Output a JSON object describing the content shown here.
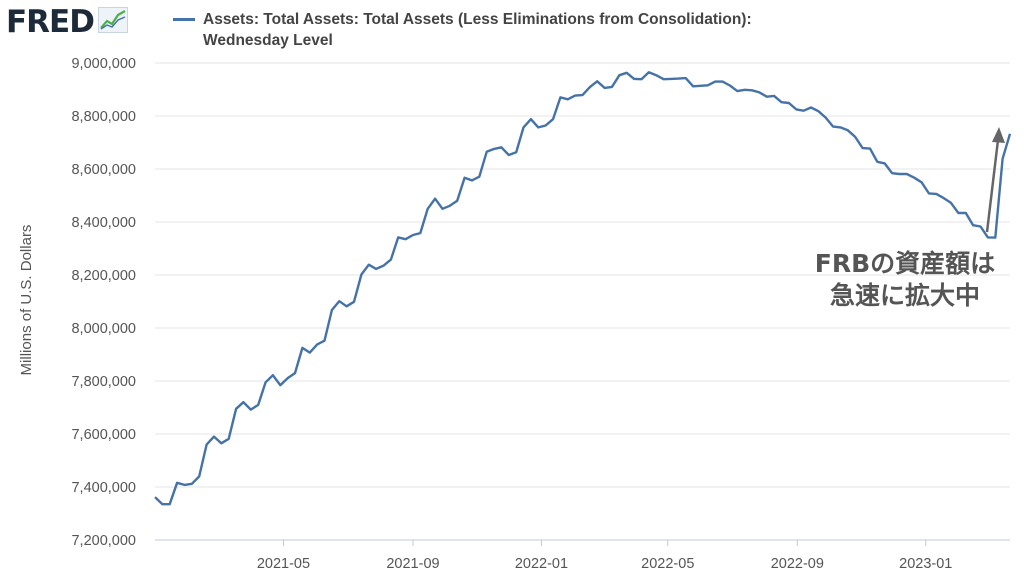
{
  "logo": {
    "text": "FRED",
    "mark": "®",
    "icon": "fred-mini-chart-icon"
  },
  "legend": {
    "line1": "Assets: Total Assets: Total Assets (Less Eliminations from Consolidation):",
    "line2": "Wednesday Level",
    "color": "#4572a7"
  },
  "annotation": {
    "line1": "FRBの資産額は",
    "line2": "急速に拡大中",
    "arrow_color": "#666666"
  },
  "chart_data": {
    "type": "line",
    "title": "",
    "xlabel": "",
    "ylabel": "Millions of U.S. Dollars",
    "ylim": [
      7200000,
      9000000
    ],
    "yticks": [
      7200000,
      7400000,
      7600000,
      7800000,
      8000000,
      8200000,
      8400000,
      8600000,
      8800000,
      9000000
    ],
    "ytick_labels": [
      "7,200,000",
      "7,400,000",
      "7,600,000",
      "7,800,000",
      "8,000,000",
      "8,200,000",
      "8,400,000",
      "8,600,000",
      "8,800,000",
      "9,000,000"
    ],
    "xlim": [
      "2020-12-30",
      "2023-03-22"
    ],
    "xticks": [
      "2021-05-01",
      "2021-09-01",
      "2022-01-01",
      "2022-05-01",
      "2022-09-01",
      "2023-01-01"
    ],
    "xtick_labels": [
      "2021-05",
      "2021-09",
      "2022-01",
      "2022-05",
      "2022-09",
      "2023-01"
    ],
    "grid": "horizontal",
    "series": [
      {
        "name": "Assets: Total Assets: Total Assets (Less Eliminations from Consolidation): Wednesday Level",
        "color": "#4572a7",
        "x": [
          "2020-12-30",
          "2021-01-06",
          "2021-01-13",
          "2021-01-20",
          "2021-01-27",
          "2021-02-03",
          "2021-02-10",
          "2021-02-17",
          "2021-02-24",
          "2021-03-03",
          "2021-03-10",
          "2021-03-17",
          "2021-03-24",
          "2021-03-31",
          "2021-04-07",
          "2021-04-14",
          "2021-04-21",
          "2021-04-28",
          "2021-05-05",
          "2021-05-12",
          "2021-05-19",
          "2021-05-26",
          "2021-06-02",
          "2021-06-09",
          "2021-06-16",
          "2021-06-23",
          "2021-06-30",
          "2021-07-07",
          "2021-07-14",
          "2021-07-21",
          "2021-07-28",
          "2021-08-04",
          "2021-08-11",
          "2021-08-18",
          "2021-08-25",
          "2021-09-01",
          "2021-09-08",
          "2021-09-15",
          "2021-09-22",
          "2021-09-29",
          "2021-10-06",
          "2021-10-13",
          "2021-10-20",
          "2021-10-27",
          "2021-11-03",
          "2021-11-10",
          "2021-11-17",
          "2021-11-24",
          "2021-12-01",
          "2021-12-08",
          "2021-12-15",
          "2021-12-22",
          "2021-12-29",
          "2022-01-05",
          "2022-01-12",
          "2022-01-19",
          "2022-01-26",
          "2022-02-02",
          "2022-02-09",
          "2022-02-16",
          "2022-02-23",
          "2022-03-02",
          "2022-03-09",
          "2022-03-16",
          "2022-03-23",
          "2022-03-30",
          "2022-04-06",
          "2022-04-13",
          "2022-04-20",
          "2022-04-27",
          "2022-05-04",
          "2022-05-11",
          "2022-05-18",
          "2022-05-25",
          "2022-06-01",
          "2022-06-08",
          "2022-06-15",
          "2022-06-22",
          "2022-06-29",
          "2022-07-06",
          "2022-07-13",
          "2022-07-20",
          "2022-07-27",
          "2022-08-03",
          "2022-08-10",
          "2022-08-17",
          "2022-08-24",
          "2022-08-31",
          "2022-09-07",
          "2022-09-14",
          "2022-09-21",
          "2022-09-28",
          "2022-10-05",
          "2022-10-12",
          "2022-10-19",
          "2022-10-26",
          "2022-11-02",
          "2022-11-09",
          "2022-11-16",
          "2022-11-23",
          "2022-11-30",
          "2022-12-07",
          "2022-12-14",
          "2022-12-21",
          "2022-12-28",
          "2023-01-04",
          "2023-01-11",
          "2023-01-18",
          "2023-01-25",
          "2023-02-01",
          "2023-02-08",
          "2023-02-15",
          "2023-02-22",
          "2023-03-01",
          "2023-03-08",
          "2023-03-15",
          "2023-03-22"
        ],
        "y": [
          7362000,
          7335000,
          7335000,
          7416000,
          7408000,
          7412000,
          7440000,
          7560000,
          7590000,
          7565000,
          7582000,
          7695000,
          7720000,
          7692000,
          7710000,
          7795000,
          7822000,
          7784000,
          7811000,
          7830000,
          7925000,
          7907000,
          7938000,
          7952000,
          8068000,
          8101000,
          8082000,
          8099000,
          8202000,
          8239000,
          8223000,
          8235000,
          8258000,
          8342000,
          8335000,
          8351000,
          8358000,
          8450000,
          8488000,
          8450000,
          8461000,
          8480000,
          8567000,
          8557000,
          8571000,
          8665000,
          8676000,
          8682000,
          8653000,
          8663000,
          8757000,
          8788000,
          8757000,
          8764000,
          8788000,
          8870000,
          8863000,
          8877000,
          8879000,
          8909000,
          8931000,
          8906000,
          8910000,
          8954000,
          8963000,
          8940000,
          8939000,
          8965000,
          8954000,
          8939000,
          8940000,
          8941000,
          8943000,
          8912000,
          8914000,
          8916000,
          8930000,
          8930000,
          8915000,
          8894000,
          8899000,
          8897000,
          8889000,
          8873000,
          8876000,
          8852000,
          8849000,
          8825000,
          8820000,
          8832000,
          8818000,
          8794000,
          8760000,
          8757000,
          8746000,
          8721000,
          8679000,
          8677000,
          8627000,
          8621000,
          8584000,
          8581000,
          8581000,
          8567000,
          8550000,
          8508000,
          8506000,
          8490000,
          8472000,
          8434000,
          8434000,
          8388000,
          8383000,
          8342000,
          8341000,
          8639000,
          8733000
        ]
      }
    ]
  }
}
